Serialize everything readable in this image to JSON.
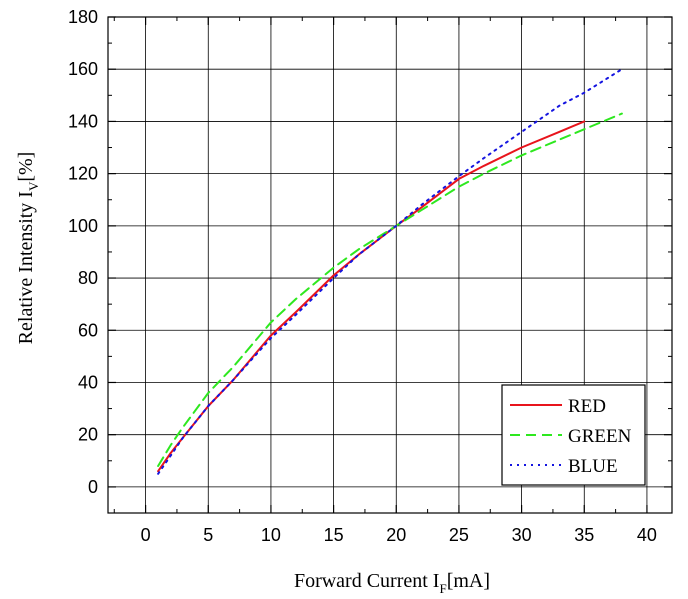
{
  "chart_data": {
    "type": "line",
    "title": "",
    "xlabel": {
      "main": "Forward Current I",
      "sub": "F",
      "unit": "[mA]"
    },
    "ylabel": {
      "main": "Relative Intensity I",
      "sub": "V",
      "unit": "[%]"
    },
    "xlim": [
      -3,
      42
    ],
    "ylim": [
      -10,
      180
    ],
    "xticks": [
      0,
      5,
      10,
      15,
      20,
      25,
      30,
      35,
      40
    ],
    "yticks": [
      0,
      20,
      40,
      60,
      80,
      100,
      120,
      140,
      160,
      180
    ],
    "grid": true,
    "legend_position": "bottom-right",
    "series": [
      {
        "name": "RED",
        "color": "#e8141c",
        "style": "solid",
        "x": [
          1,
          2,
          3,
          5,
          7,
          10,
          12,
          15,
          17,
          20,
          22,
          25,
          27,
          30,
          33,
          35
        ],
        "y": [
          6,
          13,
          19,
          31,
          41,
          58,
          67,
          81,
          89,
          100,
          107,
          118,
          123,
          130,
          136,
          140
        ]
      },
      {
        "name": "GREEN",
        "color": "#2ee81f",
        "style": "dashed",
        "x": [
          1,
          2,
          3,
          5,
          7,
          10,
          12,
          15,
          17,
          20,
          22,
          25,
          27,
          30,
          33,
          36,
          38
        ],
        "y": [
          8,
          16,
          23,
          36,
          46,
          63,
          72,
          84,
          91,
          100,
          106,
          115,
          120,
          127,
          133,
          139,
          143
        ]
      },
      {
        "name": "BLUE",
        "color": "#1414e0",
        "style": "dotted",
        "x": [
          1,
          2,
          3,
          5,
          7,
          10,
          12,
          15,
          17,
          20,
          22,
          25,
          27,
          30,
          33,
          35,
          38
        ],
        "y": [
          5,
          12,
          19,
          31,
          41,
          57,
          66,
          80,
          89,
          100,
          108,
          119,
          126,
          136,
          146,
          151,
          160
        ]
      }
    ]
  }
}
